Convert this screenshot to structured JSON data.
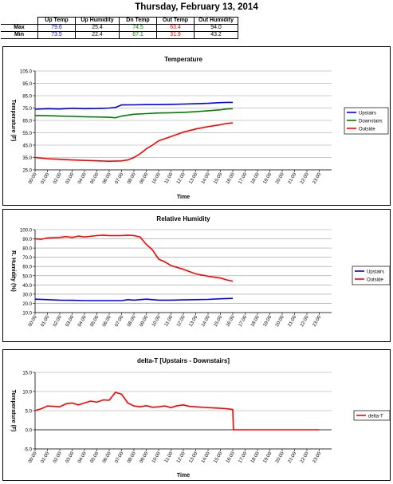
{
  "page": {
    "title": "Thursday, February 13, 2014"
  },
  "stats_table": {
    "headers": [
      "Up Temp",
      "Up Humidity",
      "Dn Temp",
      "Out Temp",
      "Out Humidity"
    ],
    "header_colors": [
      "#000000",
      "#000000",
      "#000000",
      "#000000",
      "#000000"
    ],
    "value_colors": [
      "#0000ff",
      "#000000",
      "#008000",
      "#ff0000",
      "#000000"
    ],
    "rows": [
      {
        "label": "Max",
        "values": [
          "79.6",
          "25.4",
          "74.5",
          "63.4",
          "94.0"
        ]
      },
      {
        "label": "Min",
        "values": [
          "73.5",
          "22.4",
          "67.1",
          "31.9",
          "43.2"
        ]
      }
    ]
  },
  "time_labels": [
    "00:00",
    "01:00",
    "02:00",
    "03:00",
    "04:00",
    "05:00",
    "06:00",
    "07:00",
    "08:00",
    "09:00",
    "10:00",
    "11:00",
    "12:00",
    "13:00",
    "14:00",
    "15:00",
    "16:00",
    "17:00",
    "18:00",
    "19:00",
    "20:00",
    "21:00",
    "22:00",
    "23:00"
  ],
  "chart_data": [
    {
      "type": "line",
      "title": "Temperature",
      "xlabel": "Time",
      "ylabel": "Temperature (F)",
      "ylim": [
        25,
        105
      ],
      "yticks": [
        "25.0",
        "35.0",
        "45.0",
        "55.0",
        "65.0",
        "75.0",
        "85.0",
        "95.0",
        "105.0"
      ],
      "ytick_values": [
        25,
        35,
        45,
        55,
        65,
        75,
        85,
        95,
        105
      ],
      "grid": true,
      "legend_position": "right",
      "series": [
        {
          "name": "Upstairs",
          "color": "#0000ff",
          "x": [
            0,
            1,
            2,
            3,
            4,
            5,
            6,
            6.5,
            7,
            8,
            9,
            10,
            11,
            12,
            13,
            14,
            15,
            15.5,
            16
          ],
          "values": [
            74.0,
            74.5,
            74.2,
            74.8,
            74.5,
            74.6,
            75.0,
            75.5,
            77.5,
            77.6,
            77.8,
            77.8,
            78.0,
            78.2,
            78.5,
            78.8,
            79.4,
            79.6,
            79.6
          ]
        },
        {
          "name": "Downstairs",
          "color": "#008000",
          "x": [
            0,
            1,
            2,
            3,
            4,
            5,
            6,
            6.5,
            7,
            8,
            9,
            10,
            11,
            12,
            13,
            14,
            15,
            15.5,
            16
          ],
          "values": [
            69.0,
            68.8,
            68.5,
            68.2,
            68.0,
            67.8,
            67.5,
            67.1,
            68.5,
            70.0,
            70.5,
            71.0,
            71.2,
            71.5,
            72.0,
            72.8,
            73.6,
            74.2,
            74.5
          ]
        },
        {
          "name": "Outside",
          "color": "#ff0000",
          "x": [
            0,
            1,
            2,
            3,
            4,
            5,
            6,
            7,
            7.5,
            8,
            8.5,
            9,
            9.5,
            10,
            11,
            12,
            13,
            14,
            15,
            15.5,
            16
          ],
          "values": [
            35.0,
            34.0,
            33.5,
            33.0,
            32.6,
            32.3,
            32.0,
            32.2,
            33.0,
            35.0,
            38.0,
            42.0,
            45.0,
            48.5,
            52.0,
            55.5,
            58.0,
            60.0,
            61.5,
            62.5,
            63.0
          ]
        }
      ]
    },
    {
      "type": "line",
      "title": "Relative Humidity",
      "xlabel": "",
      "ylabel": "R. Humidity (%)",
      "ylim": [
        10,
        100
      ],
      "yticks": [
        "10.0",
        "20.0",
        "30.0",
        "40.0",
        "50.0",
        "60.0",
        "70.0",
        "80.0",
        "90.0",
        "100.0"
      ],
      "ytick_values": [
        10,
        20,
        30,
        40,
        50,
        60,
        70,
        80,
        90,
        100
      ],
      "grid": true,
      "legend_position": "right",
      "series": [
        {
          "name": "Upstairs",
          "color": "#0000ff",
          "x": [
            0,
            1,
            2,
            3,
            4,
            5,
            6,
            7,
            7.5,
            8,
            9,
            10,
            11,
            12,
            13,
            14,
            15,
            15.5,
            16
          ],
          "values": [
            24.5,
            24.0,
            23.5,
            23.3,
            23.0,
            23.0,
            23.0,
            23.0,
            24.0,
            23.5,
            24.5,
            23.5,
            23.5,
            23.8,
            24.0,
            24.3,
            25.0,
            25.2,
            25.4
          ]
        },
        {
          "name": "Outside",
          "color": "#ff0000",
          "x": [
            0,
            0.5,
            1,
            2,
            2.5,
            3,
            3.5,
            4,
            5,
            5.5,
            6,
            7,
            7.5,
            8,
            8.5,
            9,
            9.5,
            10,
            10.5,
            11,
            12,
            13,
            14,
            15,
            15.5,
            16
          ],
          "values": [
            90.0,
            89.5,
            91.0,
            91.5,
            92.5,
            91.5,
            93.0,
            92.0,
            93.5,
            94.0,
            93.5,
            93.5,
            94.0,
            93.5,
            92.0,
            84.0,
            78.0,
            68.0,
            65.0,
            61.0,
            57.0,
            52.0,
            49.5,
            47.5,
            45.5,
            44.0
          ]
        }
      ]
    },
    {
      "type": "line",
      "title": "delta-T [Upstairs - Downstairs]",
      "xlabel": "Time",
      "ylabel": "Temperature (F)",
      "ylim": [
        -5,
        15
      ],
      "yticks": [
        "-5.0",
        "0.0",
        "5.0",
        "10.0",
        "15.0"
      ],
      "ytick_values": [
        -5,
        0,
        5,
        10,
        15
      ],
      "grid": true,
      "legend_position": "right",
      "series": [
        {
          "name": "delta-T",
          "color": "#ff0000",
          "x": [
            0,
            0.5,
            1,
            2,
            2.5,
            3,
            3.5,
            4,
            4.5,
            5,
            5.5,
            6,
            6.5,
            7,
            7.5,
            8,
            8.5,
            9,
            9.5,
            10,
            10.5,
            11,
            11.5,
            12,
            12.5,
            13,
            14,
            15,
            15.5,
            16,
            16.05,
            17,
            18,
            19,
            20,
            21,
            22,
            23
          ],
          "values": [
            5.0,
            5.5,
            6.2,
            6.0,
            6.8,
            7.0,
            6.5,
            7.0,
            7.5,
            7.2,
            7.8,
            7.7,
            9.8,
            9.3,
            7.0,
            6.2,
            6.0,
            6.3,
            5.9,
            6.0,
            6.2,
            5.8,
            6.3,
            6.5,
            6.1,
            6.0,
            5.8,
            5.6,
            5.5,
            5.3,
            0.0,
            0.0,
            0.0,
            0.0,
            0.0,
            0.0,
            0.0,
            0.0
          ]
        }
      ]
    }
  ]
}
